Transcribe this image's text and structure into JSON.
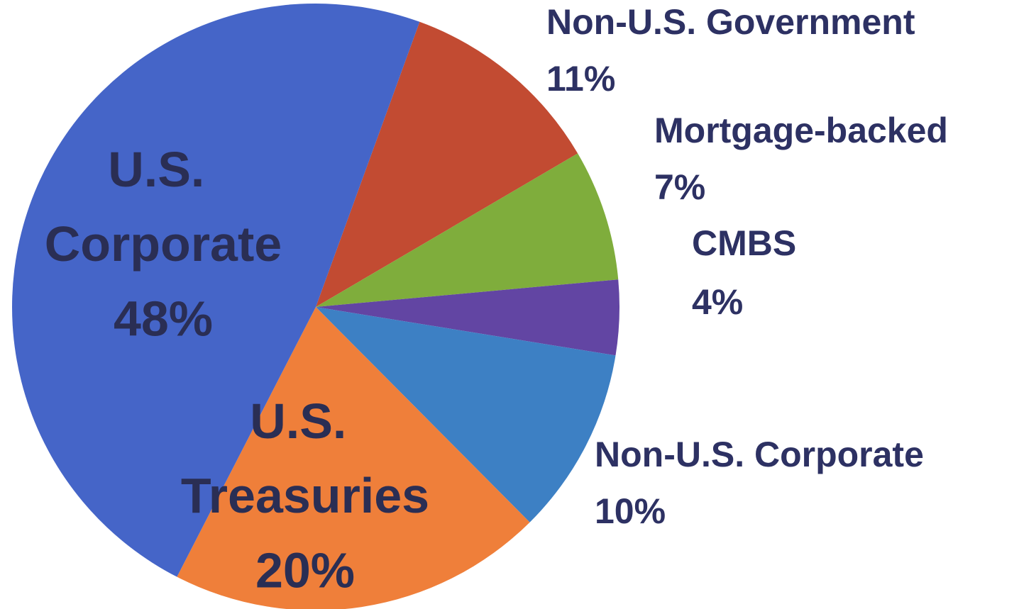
{
  "chart_data": {
    "type": "pie",
    "categories": [
      "Non-U.S. Government",
      "Mortgage-backed",
      "CMBS",
      "Non-U.S. Corporate",
      "U.S. Treasuries",
      "U.S. Corporate"
    ],
    "values": [
      11,
      7,
      4,
      10,
      20,
      48
    ],
    "value_labels": [
      "11%",
      "7%",
      "4%",
      "10%",
      "20%",
      "48%"
    ],
    "colors": [
      "#c24b32",
      "#7fad3c",
      "#6245a3",
      "#3d80c4",
      "#ef7f3a",
      "#4565c8"
    ]
  }
}
